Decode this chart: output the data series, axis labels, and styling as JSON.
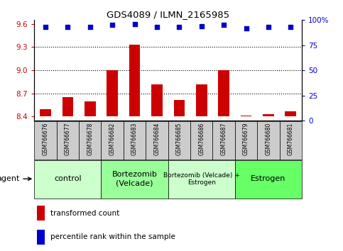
{
  "title": "GDS4089 / ILMN_2165985",
  "samples": [
    "GSM766676",
    "GSM766677",
    "GSM766678",
    "GSM766682",
    "GSM766683",
    "GSM766684",
    "GSM766685",
    "GSM766686",
    "GSM766687",
    "GSM766679",
    "GSM766680",
    "GSM766681"
  ],
  "bar_values": [
    8.5,
    8.65,
    8.6,
    9.0,
    9.33,
    8.82,
    8.62,
    8.82,
    9.0,
    8.41,
    8.43,
    8.47
  ],
  "percentile_values": [
    93,
    93,
    93,
    95,
    96,
    93,
    93,
    94,
    95,
    92,
    93,
    93
  ],
  "bar_color": "#cc0000",
  "dot_color": "#0000cc",
  "ylim_left": [
    8.35,
    9.65
  ],
  "ylim_right": [
    0,
    100
  ],
  "yticks_left": [
    8.4,
    8.7,
    9.0,
    9.3,
    9.6
  ],
  "yticks_right": [
    0,
    25,
    50,
    75,
    100
  ],
  "ytick_labels_right": [
    "0",
    "25",
    "50",
    "75",
    "100%"
  ],
  "grid_values": [
    8.7,
    9.0,
    9.3
  ],
  "groups": [
    {
      "label": "control",
      "start": 0,
      "end": 3,
      "color": "#ccffcc",
      "fontsize": 8
    },
    {
      "label": "Bortezomib\n(Velcade)",
      "start": 3,
      "end": 6,
      "color": "#99ff99",
      "fontsize": 8
    },
    {
      "label": "Bortezomib (Velcade) +\nEstrogen",
      "start": 6,
      "end": 9,
      "color": "#ccffcc",
      "fontsize": 6.5
    },
    {
      "label": "Estrogen",
      "start": 9,
      "end": 12,
      "color": "#66ff66",
      "fontsize": 8
    }
  ],
  "agent_label": "agent",
  "legend_items": [
    {
      "color": "#cc0000",
      "label": "transformed count"
    },
    {
      "color": "#0000cc",
      "label": "percentile rank within the sample"
    }
  ],
  "bar_bottom": 8.4,
  "sample_box_color": "#cccccc",
  "figure_width": 4.83,
  "figure_height": 3.54
}
